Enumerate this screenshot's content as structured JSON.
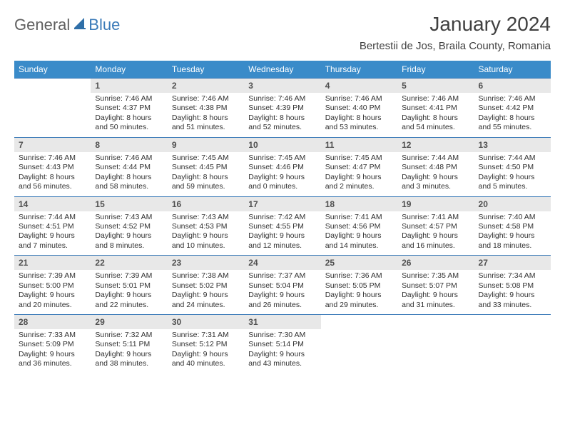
{
  "logo": {
    "general": "General",
    "blue": "Blue"
  },
  "title": "January 2024",
  "location": "Bertestii de Jos, Braila County, Romania",
  "colors": {
    "header_bg": "#3a8bc9",
    "header_text": "#ffffff",
    "daynum_bg": "#e8e8e8",
    "border": "#3a7ab8",
    "logo_gray": "#606060",
    "logo_blue": "#3a7ab8",
    "text": "#303030"
  },
  "calendar": {
    "type": "table",
    "columns": [
      "Sunday",
      "Monday",
      "Tuesday",
      "Wednesday",
      "Thursday",
      "Friday",
      "Saturday"
    ],
    "first_weekday_offset": 1,
    "days": [
      {
        "n": 1,
        "sunrise": "7:46 AM",
        "sunset": "4:37 PM",
        "dl": "8 hours and 50 minutes."
      },
      {
        "n": 2,
        "sunrise": "7:46 AM",
        "sunset": "4:38 PM",
        "dl": "8 hours and 51 minutes."
      },
      {
        "n": 3,
        "sunrise": "7:46 AM",
        "sunset": "4:39 PM",
        "dl": "8 hours and 52 minutes."
      },
      {
        "n": 4,
        "sunrise": "7:46 AM",
        "sunset": "4:40 PM",
        "dl": "8 hours and 53 minutes."
      },
      {
        "n": 5,
        "sunrise": "7:46 AM",
        "sunset": "4:41 PM",
        "dl": "8 hours and 54 minutes."
      },
      {
        "n": 6,
        "sunrise": "7:46 AM",
        "sunset": "4:42 PM",
        "dl": "8 hours and 55 minutes."
      },
      {
        "n": 7,
        "sunrise": "7:46 AM",
        "sunset": "4:43 PM",
        "dl": "8 hours and 56 minutes."
      },
      {
        "n": 8,
        "sunrise": "7:46 AM",
        "sunset": "4:44 PM",
        "dl": "8 hours and 58 minutes."
      },
      {
        "n": 9,
        "sunrise": "7:45 AM",
        "sunset": "4:45 PM",
        "dl": "8 hours and 59 minutes."
      },
      {
        "n": 10,
        "sunrise": "7:45 AM",
        "sunset": "4:46 PM",
        "dl": "9 hours and 0 minutes."
      },
      {
        "n": 11,
        "sunrise": "7:45 AM",
        "sunset": "4:47 PM",
        "dl": "9 hours and 2 minutes."
      },
      {
        "n": 12,
        "sunrise": "7:44 AM",
        "sunset": "4:48 PM",
        "dl": "9 hours and 3 minutes."
      },
      {
        "n": 13,
        "sunrise": "7:44 AM",
        "sunset": "4:50 PM",
        "dl": "9 hours and 5 minutes."
      },
      {
        "n": 14,
        "sunrise": "7:44 AM",
        "sunset": "4:51 PM",
        "dl": "9 hours and 7 minutes."
      },
      {
        "n": 15,
        "sunrise": "7:43 AM",
        "sunset": "4:52 PM",
        "dl": "9 hours and 8 minutes."
      },
      {
        "n": 16,
        "sunrise": "7:43 AM",
        "sunset": "4:53 PM",
        "dl": "9 hours and 10 minutes."
      },
      {
        "n": 17,
        "sunrise": "7:42 AM",
        "sunset": "4:55 PM",
        "dl": "9 hours and 12 minutes."
      },
      {
        "n": 18,
        "sunrise": "7:41 AM",
        "sunset": "4:56 PM",
        "dl": "9 hours and 14 minutes."
      },
      {
        "n": 19,
        "sunrise": "7:41 AM",
        "sunset": "4:57 PM",
        "dl": "9 hours and 16 minutes."
      },
      {
        "n": 20,
        "sunrise": "7:40 AM",
        "sunset": "4:58 PM",
        "dl": "9 hours and 18 minutes."
      },
      {
        "n": 21,
        "sunrise": "7:39 AM",
        "sunset": "5:00 PM",
        "dl": "9 hours and 20 minutes."
      },
      {
        "n": 22,
        "sunrise": "7:39 AM",
        "sunset": "5:01 PM",
        "dl": "9 hours and 22 minutes."
      },
      {
        "n": 23,
        "sunrise": "7:38 AM",
        "sunset": "5:02 PM",
        "dl": "9 hours and 24 minutes."
      },
      {
        "n": 24,
        "sunrise": "7:37 AM",
        "sunset": "5:04 PM",
        "dl": "9 hours and 26 minutes."
      },
      {
        "n": 25,
        "sunrise": "7:36 AM",
        "sunset": "5:05 PM",
        "dl": "9 hours and 29 minutes."
      },
      {
        "n": 26,
        "sunrise": "7:35 AM",
        "sunset": "5:07 PM",
        "dl": "9 hours and 31 minutes."
      },
      {
        "n": 27,
        "sunrise": "7:34 AM",
        "sunset": "5:08 PM",
        "dl": "9 hours and 33 minutes."
      },
      {
        "n": 28,
        "sunrise": "7:33 AM",
        "sunset": "5:09 PM",
        "dl": "9 hours and 36 minutes."
      },
      {
        "n": 29,
        "sunrise": "7:32 AM",
        "sunset": "5:11 PM",
        "dl": "9 hours and 38 minutes."
      },
      {
        "n": 30,
        "sunrise": "7:31 AM",
        "sunset": "5:12 PM",
        "dl": "9 hours and 40 minutes."
      },
      {
        "n": 31,
        "sunrise": "7:30 AM",
        "sunset": "5:14 PM",
        "dl": "9 hours and 43 minutes."
      }
    ],
    "labels": {
      "sunrise": "Sunrise:",
      "sunset": "Sunset:",
      "daylight": "Daylight:"
    }
  }
}
